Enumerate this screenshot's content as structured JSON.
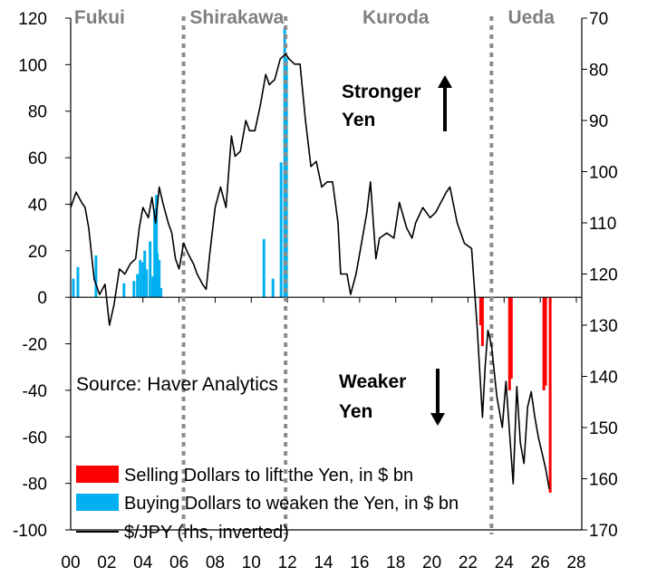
{
  "chart_data": {
    "type": "bar+line",
    "title": "",
    "x_ticks": [
      "00",
      "02",
      "04",
      "06",
      "08",
      "10",
      "12",
      "14",
      "16",
      "18",
      "20",
      "22",
      "24",
      "26",
      "28"
    ],
    "x_range": [
      2000,
      2028.3
    ],
    "left_axis": {
      "ticks": [
        "120",
        "100",
        "80",
        "60",
        "40",
        "20",
        "0",
        "-20",
        "-40",
        "-60",
        "-80",
        "-100"
      ],
      "range": [
        -100,
        120
      ]
    },
    "right_axis": {
      "ticks": [
        "70",
        "80",
        "90",
        "100",
        "110",
        "120",
        "130",
        "140",
        "150",
        "160",
        "170"
      ],
      "range": [
        70,
        170
      ],
      "inverted": true
    },
    "governors": [
      {
        "name": "Fukui",
        "x": 2001.6
      },
      {
        "name": "Shirakawa",
        "x": 2009.2
      },
      {
        "name": "Kuroda",
        "x": 2018.0
      },
      {
        "name": "Ueda",
        "x": 2025.5
      }
    ],
    "governor_boundaries": [
      2006.25,
      2011.9,
      2023.3
    ],
    "annotations": {
      "stronger": [
        "Stronger",
        "Yen"
      ],
      "weaker": [
        "Weaker",
        "Yen"
      ],
      "source": "Source: Haver Analytics"
    },
    "legend": [
      {
        "label": "Selling Dollars to lift the Yen, in $ bn",
        "color": "#ff0000",
        "kind": "bar"
      },
      {
        "label": "Buying Dollars to weaken the Yen, in $ bn",
        "color": "#00b0f0",
        "kind": "bar"
      },
      {
        "label": "$/JPY (rhs, inverted)",
        "color": "#000000",
        "kind": "line"
      }
    ],
    "series": [
      {
        "name": "Buying Dollars to weaken the Yen, in $ bn",
        "color": "#00b0f0",
        "points": [
          [
            2000.15,
            8
          ],
          [
            2000.4,
            13
          ],
          [
            2001.4,
            18
          ],
          [
            2002.95,
            6
          ],
          [
            2003.5,
            7
          ],
          [
            2003.7,
            10
          ],
          [
            2003.85,
            16
          ],
          [
            2004.0,
            15
          ],
          [
            2004.1,
            20
          ],
          [
            2004.2,
            12
          ],
          [
            2004.4,
            24
          ],
          [
            2004.55,
            9
          ],
          [
            2004.65,
            38
          ],
          [
            2004.75,
            44
          ],
          [
            2004.8,
            19
          ],
          [
            2004.9,
            16
          ],
          [
            2005.0,
            4
          ],
          [
            2010.7,
            25
          ],
          [
            2011.2,
            8
          ],
          [
            2011.65,
            58
          ],
          [
            2011.85,
            116
          ],
          [
            2011.95,
            103
          ]
        ]
      },
      {
        "name": "Selling Dollars to lift the Yen, in $ bn",
        "color": "#ff0000",
        "points": [
          [
            2022.7,
            -12
          ],
          [
            2022.8,
            -21
          ],
          [
            2024.3,
            -40
          ],
          [
            2024.4,
            -35
          ],
          [
            2026.2,
            -40
          ],
          [
            2026.3,
            -38
          ],
          [
            2026.55,
            -84
          ]
        ]
      },
      {
        "name": "$/JPY (rhs, inverted)",
        "color": "#000000",
        "points": [
          [
            2000.0,
            107
          ],
          [
            2000.3,
            104
          ],
          [
            2000.6,
            106
          ],
          [
            2000.8,
            107
          ],
          [
            2001.0,
            111
          ],
          [
            2001.3,
            121
          ],
          [
            2001.6,
            124
          ],
          [
            2001.9,
            122
          ],
          [
            2002.15,
            130
          ],
          [
            2002.4,
            126
          ],
          [
            2002.7,
            119
          ],
          [
            2003.0,
            120
          ],
          [
            2003.3,
            118
          ],
          [
            2003.6,
            117
          ],
          [
            2003.8,
            111
          ],
          [
            2004.0,
            107
          ],
          [
            2004.3,
            109
          ],
          [
            2004.5,
            105
          ],
          [
            2004.7,
            110
          ],
          [
            2004.9,
            103
          ],
          [
            2005.1,
            106
          ],
          [
            2005.4,
            110
          ],
          [
            2005.6,
            112
          ],
          [
            2005.8,
            117
          ],
          [
            2006.0,
            119
          ],
          [
            2006.25,
            114
          ],
          [
            2006.5,
            116
          ],
          [
            2006.8,
            118
          ],
          [
            2007.0,
            120
          ],
          [
            2007.3,
            122
          ],
          [
            2007.5,
            123
          ],
          [
            2007.7,
            116
          ],
          [
            2008.0,
            107
          ],
          [
            2008.3,
            103
          ],
          [
            2008.6,
            107
          ],
          [
            2008.9,
            93
          ],
          [
            2009.1,
            97
          ],
          [
            2009.4,
            96
          ],
          [
            2009.7,
            90
          ],
          [
            2009.9,
            92
          ],
          [
            2010.2,
            92
          ],
          [
            2010.5,
            87
          ],
          [
            2010.8,
            81
          ],
          [
            2011.0,
            83
          ],
          [
            2011.3,
            82
          ],
          [
            2011.6,
            78
          ],
          [
            2011.9,
            77
          ],
          [
            2012.1,
            78
          ],
          [
            2012.4,
            79
          ],
          [
            2012.7,
            79
          ],
          [
            2013.0,
            90
          ],
          [
            2013.3,
            99
          ],
          [
            2013.6,
            98
          ],
          [
            2013.9,
            103
          ],
          [
            2014.2,
            102
          ],
          [
            2014.5,
            102
          ],
          [
            2014.8,
            110
          ],
          [
            2014.95,
            120
          ],
          [
            2015.3,
            120
          ],
          [
            2015.5,
            124
          ],
          [
            2015.8,
            120
          ],
          [
            2016.1,
            114
          ],
          [
            2016.4,
            108
          ],
          [
            2016.6,
            102
          ],
          [
            2016.9,
            117
          ],
          [
            2017.1,
            113
          ],
          [
            2017.5,
            112
          ],
          [
            2017.9,
            113
          ],
          [
            2018.2,
            106
          ],
          [
            2018.6,
            111
          ],
          [
            2018.9,
            113
          ],
          [
            2019.1,
            110
          ],
          [
            2019.5,
            107
          ],
          [
            2019.9,
            109
          ],
          [
            2020.2,
            108
          ],
          [
            2020.5,
            106
          ],
          [
            2020.8,
            104
          ],
          [
            2021.0,
            103
          ],
          [
            2021.4,
            110
          ],
          [
            2021.8,
            114
          ],
          [
            2022.2,
            115
          ],
          [
            2022.5,
            130
          ],
          [
            2022.8,
            148
          ],
          [
            2022.95,
            138
          ],
          [
            2023.1,
            131
          ],
          [
            2023.3,
            134
          ],
          [
            2023.6,
            144
          ],
          [
            2023.9,
            150
          ],
          [
            2024.1,
            141
          ],
          [
            2024.3,
            151
          ],
          [
            2024.5,
            161
          ],
          [
            2024.7,
            142
          ],
          [
            2024.9,
            153
          ],
          [
            2025.1,
            157
          ],
          [
            2025.3,
            146
          ],
          [
            2025.5,
            143
          ],
          [
            2025.7,
            148
          ],
          [
            2025.9,
            152
          ],
          [
            2026.1,
            155
          ],
          [
            2026.3,
            158
          ],
          [
            2026.5,
            162
          ]
        ]
      }
    ]
  }
}
